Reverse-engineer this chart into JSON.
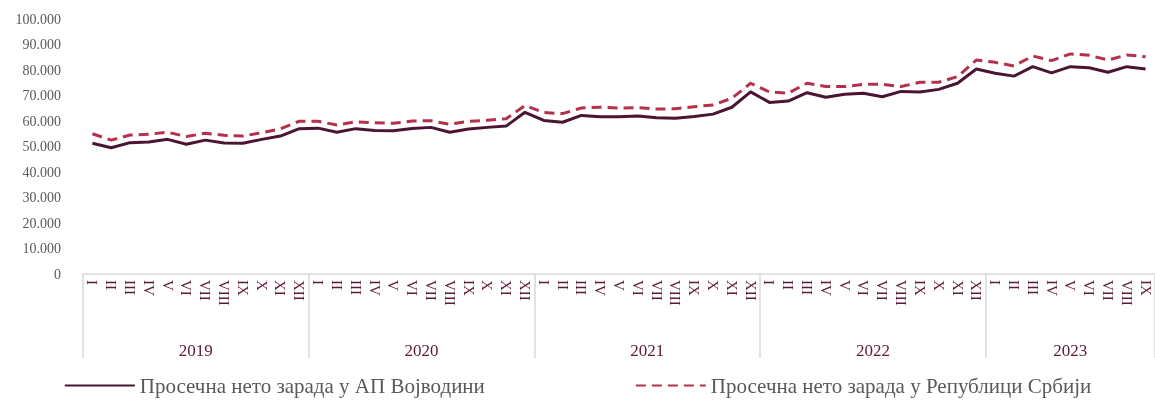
{
  "chart_data": {
    "type": "line",
    "categories": [
      "I",
      "II",
      "III",
      "IV",
      "V",
      "VI",
      "VII",
      "VIII",
      "IX",
      "X",
      "XI",
      "XII",
      "I",
      "II",
      "III",
      "IV",
      "V",
      "VI",
      "VII",
      "VIII",
      "IX",
      "X",
      "XI",
      "XII",
      "I",
      "II",
      "III",
      "IV",
      "V",
      "VI",
      "VII",
      "VIII",
      "IX",
      "X",
      "XI",
      "XII",
      "I",
      "II",
      "III",
      "IV",
      "V",
      "VI",
      "VII",
      "VIII",
      "IX",
      "X",
      "XI",
      "XII",
      "I",
      "II",
      "III",
      "IV",
      "V",
      "VI",
      "VII",
      "VIII",
      "IX"
    ],
    "series": [
      {
        "name": "Просечна нето зарада у АП Војводини",
        "color": "#4b1531",
        "line_style": "solid",
        "values": [
          51300,
          49500,
          51500,
          51800,
          52800,
          50900,
          52500,
          51400,
          51300,
          52800,
          54100,
          57000,
          57200,
          55600,
          57000,
          56300,
          56200,
          57100,
          57500,
          55600,
          56900,
          57500,
          58000,
          63400,
          60200,
          59500,
          62200,
          61700,
          61700,
          62000,
          61300,
          61100,
          61800,
          62700,
          65400,
          71400,
          67300,
          67800,
          71100,
          69300,
          70500,
          70900,
          69500,
          71600,
          71400,
          72400,
          74800,
          80400,
          78700,
          77600,
          81300,
          78900,
          81300,
          80900,
          79100,
          81300,
          80400
        ]
      },
      {
        "name": "Просечна нето зарада у Републици Србији",
        "color": "#b5304b",
        "line_style": "dashed",
        "values": [
          55000,
          52500,
          54500,
          54800,
          55600,
          53900,
          55200,
          54400,
          54100,
          55400,
          56900,
          59900,
          59900,
          58400,
          59700,
          59300,
          59100,
          60000,
          60100,
          58700,
          59900,
          60300,
          60900,
          66100,
          63300,
          62900,
          65100,
          65400,
          65100,
          65200,
          64700,
          64800,
          65600,
          66300,
          68900,
          74800,
          71400,
          70900,
          74800,
          73500,
          73500,
          74400,
          74400,
          73500,
          75200,
          75200,
          77400,
          83900,
          83000,
          81600,
          85500,
          83700,
          86300,
          85800,
          83900,
          85900,
          85200
        ]
      }
    ],
    "annotations": [
      "2019",
      "2020",
      "2021",
      "2022",
      "2023"
    ],
    "ylim": [
      0,
      100000
    ],
    "yticks": [
      {
        "value": 0,
        "label": "0"
      },
      {
        "value": 10000,
        "label": "10.000"
      },
      {
        "value": 20000,
        "label": "20.000"
      },
      {
        "value": 30000,
        "label": "30.000"
      },
      {
        "value": 40000,
        "label": "40.000"
      },
      {
        "value": 50000,
        "label": "50.000"
      },
      {
        "value": 60000,
        "label": "60.000"
      },
      {
        "value": 70000,
        "label": "70.000"
      },
      {
        "value": 80000,
        "label": "80.000"
      },
      {
        "value": 90000,
        "label": "90.000"
      },
      {
        "value": 100000,
        "label": "100.000"
      }
    ],
    "grid": false,
    "marker": "none",
    "legend": "bottom"
  }
}
